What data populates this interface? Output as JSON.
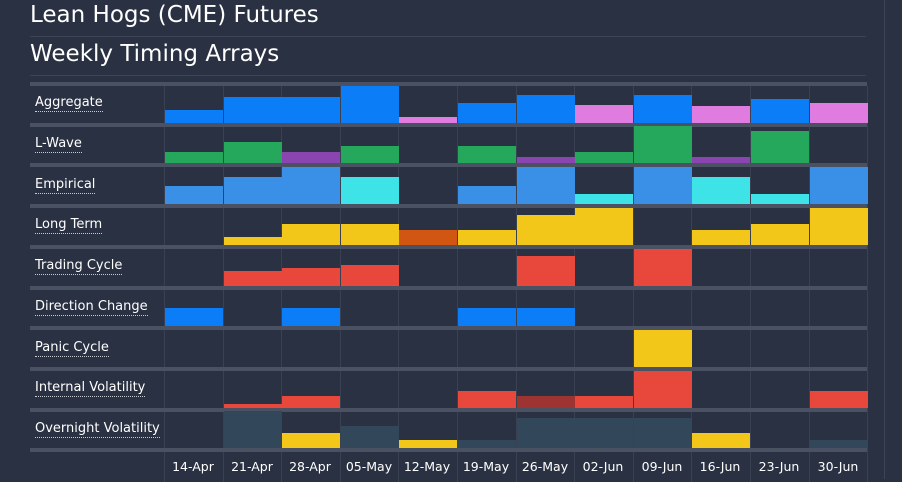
{
  "title": "Lean Hogs (CME) Futures",
  "subtitle": "Weekly Timing Arrays",
  "colors": {
    "background": "#2a3142",
    "row_separator": "#4a5162",
    "blue": "#0b7ef7",
    "green": "#25a85c",
    "purple": "#8b45b0",
    "pink": "#e07ce0",
    "lightblue": "#3a8fe6",
    "cyan": "#3de3e6",
    "yellow": "#f3c61a",
    "orange": "#d05612",
    "red": "#e8483c",
    "darkred": "#9e3431",
    "slate": "#33475a"
  },
  "dates": [
    "14-Apr",
    "21-Apr",
    "28-Apr",
    "05-May",
    "12-May",
    "19-May",
    "26-May",
    "02-Jun",
    "09-Jun",
    "16-Jun",
    "23-Jun",
    "30-Jun"
  ],
  "rows": [
    {
      "label": "Aggregate",
      "cells": [
        {
          "level": 0.36,
          "color": "blue"
        },
        {
          "level": 0.71,
          "color": "blue"
        },
        {
          "level": 0.71,
          "color": "blue"
        },
        {
          "level": 1.0,
          "color": "blue"
        },
        {
          "level": 0.16,
          "color": "pink"
        },
        {
          "level": 0.55,
          "color": "blue"
        },
        {
          "level": 0.76,
          "color": "blue"
        },
        {
          "level": 0.5,
          "color": "pink"
        },
        {
          "level": 0.76,
          "color": "blue"
        },
        {
          "level": 0.45,
          "color": "pink"
        },
        {
          "level": 0.66,
          "color": "blue"
        },
        {
          "level": 0.55,
          "color": "pink"
        }
      ]
    },
    {
      "label": "L-Wave",
      "cells": [
        {
          "level": 0.29,
          "color": "green"
        },
        {
          "level": 0.58,
          "color": "green"
        },
        {
          "level": 0.29,
          "color": "purple"
        },
        {
          "level": 0.45,
          "color": "green"
        },
        {
          "level": 0,
          "color": ""
        },
        {
          "level": 0.45,
          "color": "green"
        },
        {
          "level": 0.16,
          "color": "purple"
        },
        {
          "level": 0.29,
          "color": "green"
        },
        {
          "level": 1.0,
          "color": "green"
        },
        {
          "level": 0.16,
          "color": "purple"
        },
        {
          "level": 0.87,
          "color": "green"
        },
        {
          "level": 0,
          "color": ""
        }
      ]
    },
    {
      "label": "Empirical",
      "cells": [
        {
          "level": 0.5,
          "color": "lightblue"
        },
        {
          "level": 0.74,
          "color": "lightblue"
        },
        {
          "level": 1.0,
          "color": "lightblue"
        },
        {
          "level": 0.74,
          "color": "cyan"
        },
        {
          "level": 0,
          "color": ""
        },
        {
          "level": 0.5,
          "color": "lightblue"
        },
        {
          "level": 1.0,
          "color": "lightblue"
        },
        {
          "level": 0.26,
          "color": "cyan"
        },
        {
          "level": 1.0,
          "color": "lightblue"
        },
        {
          "level": 0.74,
          "color": "cyan"
        },
        {
          "level": 0.26,
          "color": "cyan"
        },
        {
          "level": 1.0,
          "color": "lightblue"
        }
      ]
    },
    {
      "label": "Long Term",
      "cells": [
        {
          "level": 0,
          "color": ""
        },
        {
          "level": 0.21,
          "color": "yellow"
        },
        {
          "level": 0.58,
          "color": "yellow"
        },
        {
          "level": 0.58,
          "color": "yellow"
        },
        {
          "level": 0.42,
          "color": "orange"
        },
        {
          "level": 0.42,
          "color": "yellow"
        },
        {
          "level": 0.82,
          "color": "yellow"
        },
        {
          "level": 1.0,
          "color": "yellow"
        },
        {
          "level": 0,
          "color": ""
        },
        {
          "level": 0.42,
          "color": "yellow"
        },
        {
          "level": 0.58,
          "color": "yellow"
        },
        {
          "level": 1.0,
          "color": "yellow"
        }
      ]
    },
    {
      "label": "Trading Cycle",
      "cells": [
        {
          "level": 0,
          "color": ""
        },
        {
          "level": 0.42,
          "color": "red"
        },
        {
          "level": 0.5,
          "color": "red"
        },
        {
          "level": 0.58,
          "color": "red"
        },
        {
          "level": 0,
          "color": ""
        },
        {
          "level": 0,
          "color": ""
        },
        {
          "level": 0.82,
          "color": "red"
        },
        {
          "level": 0,
          "color": ""
        },
        {
          "level": 1.0,
          "color": "red"
        },
        {
          "level": 0,
          "color": ""
        },
        {
          "level": 0,
          "color": ""
        },
        {
          "level": 0,
          "color": ""
        }
      ]
    },
    {
      "label": "Direction Change",
      "cells": [
        {
          "level": 0.5,
          "color": "blue"
        },
        {
          "level": 0,
          "color": ""
        },
        {
          "level": 0.5,
          "color": "blue"
        },
        {
          "level": 0,
          "color": ""
        },
        {
          "level": 0,
          "color": ""
        },
        {
          "level": 0.5,
          "color": "blue"
        },
        {
          "level": 0.5,
          "color": "blue"
        },
        {
          "level": 0,
          "color": ""
        },
        {
          "level": 0,
          "color": ""
        },
        {
          "level": 0,
          "color": ""
        },
        {
          "level": 0,
          "color": ""
        },
        {
          "level": 0,
          "color": ""
        }
      ]
    },
    {
      "label": "Panic Cycle",
      "cells": [
        {
          "level": 0,
          "color": ""
        },
        {
          "level": 0,
          "color": ""
        },
        {
          "level": 0,
          "color": ""
        },
        {
          "level": 0,
          "color": ""
        },
        {
          "level": 0,
          "color": ""
        },
        {
          "level": 0,
          "color": ""
        },
        {
          "level": 0,
          "color": ""
        },
        {
          "level": 0,
          "color": ""
        },
        {
          "level": 1.0,
          "color": "yellow"
        },
        {
          "level": 0,
          "color": ""
        },
        {
          "level": 0,
          "color": ""
        },
        {
          "level": 0,
          "color": ""
        }
      ]
    },
    {
      "label": "Internal Volatility",
      "cells": [
        {
          "level": 0,
          "color": ""
        },
        {
          "level": 0.11,
          "color": "red"
        },
        {
          "level": 0.32,
          "color": "red"
        },
        {
          "level": 0,
          "color": ""
        },
        {
          "level": 0,
          "color": ""
        },
        {
          "level": 0.45,
          "color": "red"
        },
        {
          "level": 0.32,
          "color": "darkred"
        },
        {
          "level": 0.32,
          "color": "red"
        },
        {
          "level": 1.0,
          "color": "red"
        },
        {
          "level": 0,
          "color": ""
        },
        {
          "level": 0,
          "color": ""
        },
        {
          "level": 0.45,
          "color": "red"
        }
      ]
    },
    {
      "label": "Overnight Volatility",
      "cells": [
        {
          "level": 0,
          "color": ""
        },
        {
          "level": 1.0,
          "color": "slate"
        },
        {
          "level": 0.42,
          "color": "yellow"
        },
        {
          "level": 0.61,
          "color": "slate"
        },
        {
          "level": 0.21,
          "color": "yellow"
        },
        {
          "level": 0.21,
          "color": "slate"
        },
        {
          "level": 0.82,
          "color": "slate"
        },
        {
          "level": 0.82,
          "color": "slate"
        },
        {
          "level": 0.82,
          "color": "slate"
        },
        {
          "level": 0.42,
          "color": "yellow"
        },
        {
          "level": 0,
          "color": ""
        },
        {
          "level": 0.21,
          "color": "slate"
        }
      ]
    }
  ]
}
